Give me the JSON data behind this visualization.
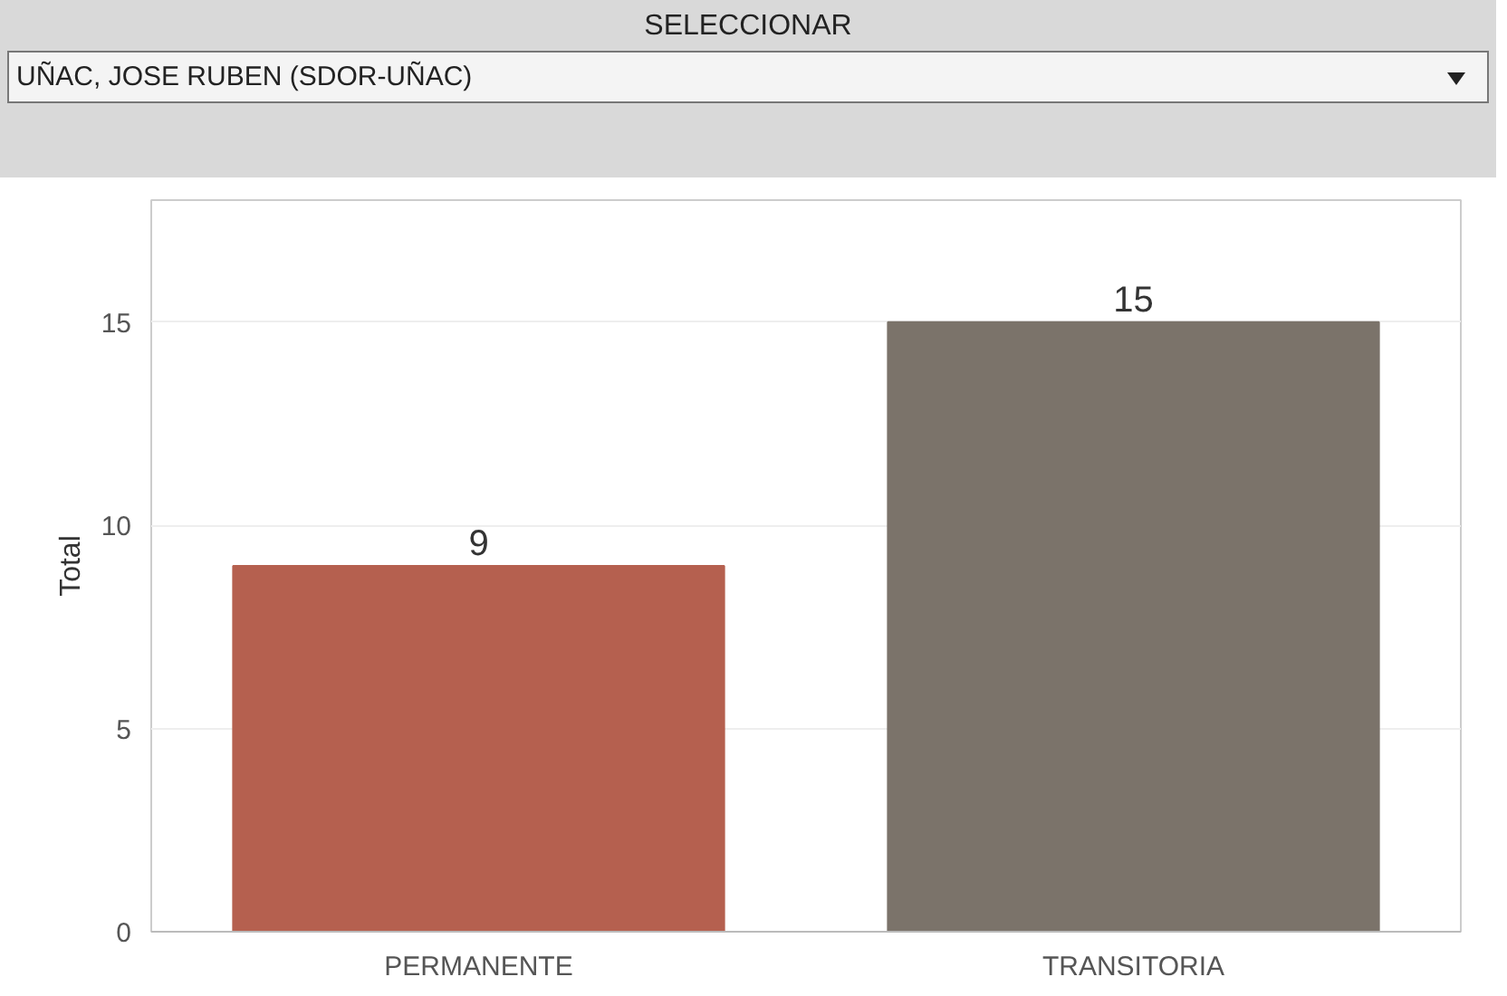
{
  "chart_data": {
    "type": "bar",
    "title": "SELECCIONAR",
    "subtitle": "UÑAC, JOSE RUBEN (SDOR-UÑAC)",
    "ylabel": "Total",
    "categories": [
      "PERMANENTE",
      "TRANSITORIA"
    ],
    "values": [
      9,
      15
    ],
    "colors": [
      "#b5604f",
      "#7b736a"
    ],
    "ylim": [
      0,
      18
    ],
    "yticks": [
      0,
      5,
      10,
      15
    ],
    "grid": "y",
    "data_labels": true
  }
}
